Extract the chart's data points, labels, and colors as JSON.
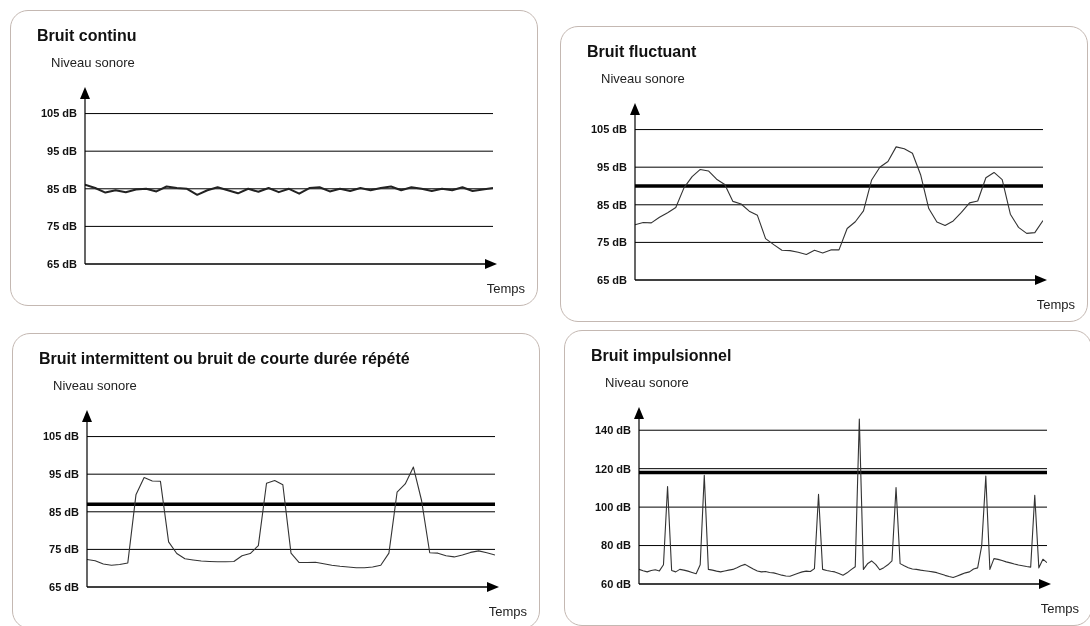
{
  "chart_data": [
    {
      "type": "line",
      "title": "Bruit continu",
      "ylabel": "Niveau sonore",
      "xlabel": "Temps",
      "ylim": [
        65,
        111
      ],
      "yticks": [
        {
          "value": 65,
          "label": "65 dB"
        },
        {
          "value": 75,
          "label": "75 dB"
        },
        {
          "value": 85,
          "label": "85 dB"
        },
        {
          "value": 95,
          "label": "95 dB"
        },
        {
          "value": 105,
          "label": "105 dB"
        }
      ],
      "grid": "y",
      "tick_labels": "y",
      "categories": [
        null,
        null,
        null,
        null,
        null,
        null,
        null,
        null,
        null,
        null,
        null,
        null,
        null,
        null,
        null,
        null,
        null,
        null,
        null,
        null,
        null,
        null,
        null,
        null,
        null,
        null,
        null,
        null,
        null,
        null,
        null,
        null,
        null,
        null,
        null,
        null,
        null,
        null,
        null,
        null,
        null
      ],
      "series": [
        {
          "color": "#222222",
          "values": [
            86.1,
            85.2,
            84.0,
            84.6,
            84.1,
            84.8,
            85.0,
            84.3,
            85.6,
            85.2,
            85.0,
            83.4,
            84.6,
            85.4,
            84.6,
            83.8,
            85.0,
            84.2,
            85.2,
            84.1,
            85.0,
            83.7,
            85.2,
            85.4,
            84.3,
            85.0,
            84.4,
            85.2,
            84.6,
            85.2,
            85.6,
            84.6,
            85.4,
            85.0,
            84.4,
            85.0,
            84.6,
            85.4,
            84.4,
            84.8,
            85.2
          ]
        }
      ]
    },
    {
      "type": "line",
      "title": "Bruit fluctuant",
      "ylabel": "Niveau sonore",
      "xlabel": "Temps",
      "ylim": [
        65,
        111
      ],
      "yticks": [
        {
          "value": 65,
          "label": "65 dB"
        },
        {
          "value": 75,
          "label": "75 dB"
        },
        {
          "value": 85,
          "label": "85 dB"
        },
        {
          "value": 95,
          "label": "95 dB"
        },
        {
          "value": 105,
          "label": "105 dB"
        }
      ],
      "grid": "y",
      "tick_labels": "y",
      "ref_lines": [
        {
          "axis": "y",
          "value": 90,
          "color": "#000000"
        }
      ],
      "categories": [
        null,
        null,
        null,
        null,
        null,
        null,
        null,
        null,
        null,
        null,
        null,
        null,
        null,
        null,
        null,
        null,
        null,
        null,
        null,
        null,
        null,
        null,
        null,
        null,
        null,
        null,
        null,
        null,
        null,
        null,
        null,
        null,
        null,
        null,
        null,
        null,
        null,
        null,
        null,
        null,
        null,
        null,
        null,
        null,
        null,
        null,
        null,
        null,
        null,
        null,
        null
      ],
      "series": [
        {
          "color": "#333333",
          "values": [
            79.7,
            80.3,
            80.2,
            81.7,
            82.9,
            84.3,
            89.5,
            92.5,
            94.4,
            94.0,
            91.8,
            90.4,
            85.9,
            85.2,
            83.3,
            82.2,
            76.0,
            74.4,
            72.9,
            72.8,
            72.4,
            71.8,
            72.9,
            72.2,
            73.0,
            73.0,
            78.7,
            80.5,
            83.4,
            91.6,
            95.0,
            96.5,
            100.4,
            99.9,
            98.7,
            93.0,
            84.0,
            80.4,
            79.5,
            80.7,
            83.0,
            85.5,
            86.0,
            92.2,
            93.6,
            91.7,
            82.5,
            79.0,
            77.4,
            77.6,
            80.8
          ]
        }
      ]
    },
    {
      "type": "line",
      "title": "Bruit intermittent ou bruit de courte durée répété",
      "ylabel": "Niveau sonore",
      "xlabel": "Temps",
      "ylim": [
        65,
        111
      ],
      "yticks": [
        {
          "value": 65,
          "label": "65 dB"
        },
        {
          "value": 75,
          "label": "75 dB"
        },
        {
          "value": 85,
          "label": "85 dB"
        },
        {
          "value": 95,
          "label": "95 dB"
        },
        {
          "value": 105,
          "label": "105 dB"
        }
      ],
      "grid": "y",
      "tick_labels": "y",
      "ref_lines": [
        {
          "axis": "y",
          "value": 87,
          "color": "#000000"
        }
      ],
      "categories": [
        null,
        null,
        null,
        null,
        null,
        null,
        null,
        null,
        null,
        null,
        null,
        null,
        null,
        null,
        null,
        null,
        null,
        null,
        null,
        null,
        null,
        null,
        null,
        null,
        null,
        null,
        null,
        null,
        null,
        null,
        null,
        null,
        null,
        null,
        null,
        null,
        null,
        null,
        null,
        null,
        null,
        null,
        null,
        null,
        null,
        null,
        null,
        null,
        null,
        null,
        null
      ],
      "series": [
        {
          "color": "#333333",
          "values": [
            72.3,
            72.0,
            71.1,
            70.8,
            71.0,
            71.4,
            89.5,
            94.1,
            93.2,
            93.1,
            77.0,
            73.9,
            72.5,
            72.2,
            71.9,
            71.8,
            71.7,
            71.7,
            71.8,
            73.3,
            73.9,
            76.0,
            92.6,
            93.3,
            92.2,
            74.0,
            71.5,
            71.5,
            71.6,
            71.2,
            70.8,
            70.5,
            70.3,
            70.1,
            70.1,
            70.3,
            70.8,
            74.0,
            90.2,
            92.4,
            96.9,
            88.0,
            74.1,
            74.0,
            73.3,
            73.0,
            73.5,
            74.2,
            74.6,
            74.1,
            73.5
          ]
        }
      ]
    },
    {
      "type": "line",
      "title": "Bruit impulsionnel",
      "ylabel": "Niveau sonore",
      "xlabel": "Temps",
      "ylim": [
        60,
        150
      ],
      "yticks": [
        {
          "value": 60,
          "label": "60 dB"
        },
        {
          "value": 80,
          "label": "80 dB"
        },
        {
          "value": 100,
          "label": "100 dB"
        },
        {
          "value": 120,
          "label": "120 dB"
        },
        {
          "value": 140,
          "label": "140 dB"
        }
      ],
      "grid": "y",
      "tick_labels": "y",
      "ref_lines": [
        {
          "axis": "y",
          "value": 118,
          "color": "#000000"
        }
      ],
      "categories": [
        null,
        null,
        null,
        null,
        null,
        null,
        null,
        null,
        null,
        null,
        null,
        null,
        null,
        null,
        null,
        null,
        null,
        null,
        null,
        null,
        null,
        null,
        null,
        null,
        null,
        null,
        null,
        null,
        null,
        null,
        null,
        null,
        null,
        null,
        null,
        null,
        null,
        null,
        null,
        null,
        null,
        null,
        null,
        null,
        null,
        null,
        null,
        null,
        null,
        null,
        null,
        null,
        null,
        null,
        null,
        null,
        null,
        null,
        null,
        null,
        null,
        null,
        null,
        null,
        null,
        null,
        null,
        null,
        null,
        null,
        null,
        null,
        null,
        null,
        null,
        null,
        null,
        null,
        null,
        null,
        null,
        null,
        null,
        null,
        null,
        null,
        null,
        null,
        null,
        null,
        null,
        null,
        null,
        null,
        null,
        null,
        null,
        null,
        null,
        null,
        null
      ],
      "series": [
        {
          "color": "#333333",
          "values": [
            67.6,
            66.9,
            66.3,
            67.0,
            67.4,
            66.8,
            70.0,
            110.7,
            67.0,
            66.3,
            67.6,
            67.2,
            66.7,
            66.0,
            65.3,
            70.0,
            116.6,
            67.6,
            67.2,
            66.7,
            66.3,
            66.8,
            67.2,
            67.6,
            68.5,
            69.5,
            70.2,
            69.0,
            67.8,
            66.8,
            66.3,
            66.5,
            66.0,
            65.8,
            65.2,
            64.6,
            64.2,
            64.0,
            64.8,
            65.6,
            66.3,
            66.7,
            66.5,
            68.0,
            106.6,
            67.6,
            67.0,
            66.6,
            66.3,
            65.5,
            64.6,
            65.8,
            67.5,
            69.0,
            145.8,
            67.6,
            70.5,
            72.0,
            70.2,
            67.4,
            68.5,
            70.0,
            72.0,
            110.2,
            70.6,
            69.5,
            68.5,
            67.8,
            67.6,
            67.2,
            66.9,
            66.6,
            66.3,
            65.9,
            65.2,
            64.5,
            63.9,
            63.4,
            64.2,
            65.0,
            65.8,
            66.3,
            67.8,
            68.4,
            80.0,
            116.1,
            67.6,
            73.2,
            72.8,
            72.2,
            71.5,
            71.0,
            70.4,
            69.9,
            69.5,
            69.1,
            68.8,
            106.2,
            68.4,
            72.9,
            71.1
          ]
        }
      ]
    }
  ]
}
